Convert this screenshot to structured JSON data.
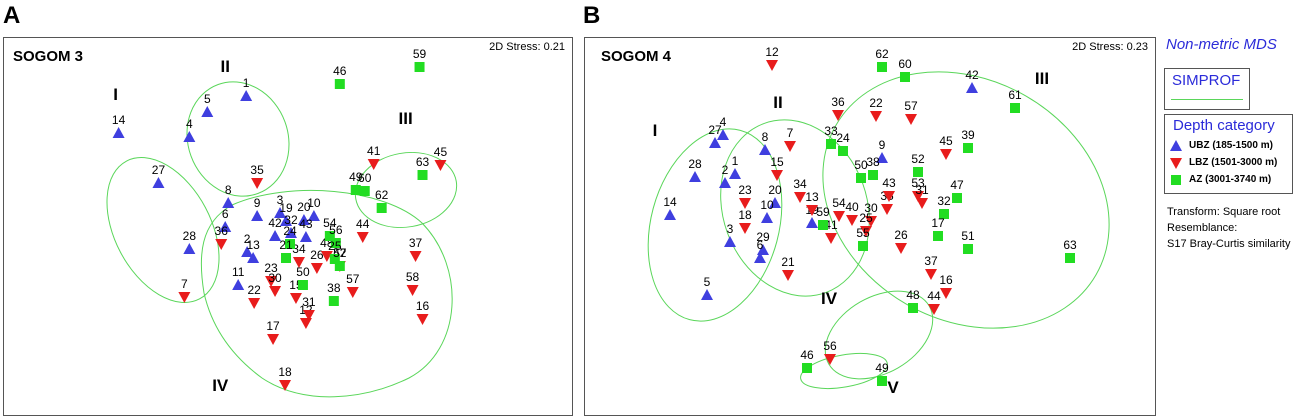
{
  "panels": [
    {
      "letter": "A",
      "title": "SOGOM 3",
      "stress": "2D Stress: 0.21"
    },
    {
      "letter": "B",
      "title": "SOGOM 4",
      "stress": "2D Stress: 0.23"
    }
  ],
  "side": {
    "mds_title": "Non-metric MDS",
    "simprof_label": "SIMPROF",
    "legend_title": "Depth category",
    "legend": [
      {
        "label": "UBZ (185-1500 m)",
        "symbol": "triangle-up",
        "color": "#3f3fdf"
      },
      {
        "label": "LBZ (1501-3000 m)",
        "symbol": "triangle-down",
        "color": "#e81c1c"
      },
      {
        "label": "AZ (3001-3740 m)",
        "symbol": "square",
        "color": "#22dd22"
      }
    ],
    "notes": [
      "Transform: Square root",
      "Resemblance:",
      "S17 Bray-Curtis similarity"
    ]
  },
  "colors": {
    "ubz": "#3f3fdf",
    "lbz": "#e81c1c",
    "az": "#22dd22",
    "simprof": "#5ad65a"
  },
  "chart_data": [
    {
      "type": "scatter",
      "title": "SOGOM 3",
      "subtitle": "2D Stress: 0.21",
      "xlabel": "",
      "ylabel": "",
      "xlim": [
        0,
        570
      ],
      "ylim": [
        0,
        377
      ],
      "axes_visible": false,
      "grid": false,
      "series": [
        {
          "name": "UBZ (185-1500 m)",
          "group": "ubz",
          "points": [
            {
              "label": "14",
              "x": 115,
              "y": 95
            },
            {
              "label": "5",
              "x": 204,
              "y": 74
            },
            {
              "label": "1",
              "x": 243,
              "y": 58
            },
            {
              "label": "4",
              "x": 186,
              "y": 99
            },
            {
              "label": "27",
              "x": 155,
              "y": 145
            },
            {
              "label": "8",
              "x": 225,
              "y": 165
            },
            {
              "label": "6",
              "x": 222,
              "y": 189
            },
            {
              "label": "9",
              "x": 254,
              "y": 178
            },
            {
              "label": "3",
              "x": 277,
              "y": 175
            },
            {
              "label": "19",
              "x": 283,
              "y": 183
            },
            {
              "label": "20",
              "x": 301,
              "y": 182
            },
            {
              "label": "10",
              "x": 311,
              "y": 178
            },
            {
              "label": "42",
              "x": 272,
              "y": 198
            },
            {
              "label": "32",
              "x": 288,
              "y": 195
            },
            {
              "label": "28",
              "x": 186,
              "y": 211
            },
            {
              "label": "2",
              "x": 244,
              "y": 214
            },
            {
              "label": "13",
              "x": 250,
              "y": 220
            },
            {
              "label": "11",
              "x": 235,
              "y": 247
            },
            {
              "label": "43",
              "x": 303,
              "y": 199
            }
          ]
        },
        {
          "name": "LBZ (1501-3000 m)",
          "group": "lbz",
          "points": [
            {
              "label": "35",
              "x": 254,
              "y": 145
            },
            {
              "label": "41",
              "x": 371,
              "y": 126
            },
            {
              "label": "45",
              "x": 438,
              "y": 127
            },
            {
              "label": "36",
              "x": 218,
              "y": 206
            },
            {
              "label": "44",
              "x": 360,
              "y": 199
            },
            {
              "label": "37",
              "x": 413,
              "y": 218
            },
            {
              "label": "7",
              "x": 181,
              "y": 259
            },
            {
              "label": "23",
              "x": 268,
              "y": 243
            },
            {
              "label": "30",
              "x": 272,
              "y": 253
            },
            {
              "label": "22",
              "x": 251,
              "y": 265
            },
            {
              "label": "34",
              "x": 296,
              "y": 224
            },
            {
              "label": "26",
              "x": 314,
              "y": 230
            },
            {
              "label": "48",
              "x": 324,
              "y": 218
            },
            {
              "label": "47",
              "x": 337,
              "y": 228
            },
            {
              "label": "58",
              "x": 410,
              "y": 252
            },
            {
              "label": "15",
              "x": 293,
              "y": 260
            },
            {
              "label": "16",
              "x": 420,
              "y": 281
            },
            {
              "label": "17",
              "x": 270,
              "y": 301
            },
            {
              "label": "12",
              "x": 303,
              "y": 285
            },
            {
              "label": "31",
              "x": 306,
              "y": 277
            },
            {
              "label": "18",
              "x": 282,
              "y": 347
            },
            {
              "label": "57",
              "x": 350,
              "y": 254
            }
          ]
        },
        {
          "name": "AZ (3001-3740 m)",
          "group": "az",
          "points": [
            {
              "label": "46",
              "x": 337,
              "y": 46
            },
            {
              "label": "59",
              "x": 417,
              "y": 29
            },
            {
              "label": "63",
              "x": 420,
              "y": 137
            },
            {
              "label": "49",
              "x": 353,
              "y": 152
            },
            {
              "label": "60",
              "x": 362,
              "y": 153
            },
            {
              "label": "62",
              "x": 379,
              "y": 170
            },
            {
              "label": "24",
              "x": 287,
              "y": 206
            },
            {
              "label": "54",
              "x": 327,
              "y": 198
            },
            {
              "label": "56",
              "x": 333,
              "y": 205
            },
            {
              "label": "21",
              "x": 283,
              "y": 220
            },
            {
              "label": "25",
              "x": 332,
              "y": 221
            },
            {
              "label": "52",
              "x": 337,
              "y": 228
            },
            {
              "label": "50",
              "x": 300,
              "y": 247
            },
            {
              "label": "38",
              "x": 331,
              "y": 263
            }
          ]
        }
      ],
      "clusters": [
        {
          "label": "I",
          "label_x": 112,
          "label_y": 62
        },
        {
          "label": "II",
          "label_x": 222,
          "label_y": 34
        },
        {
          "label": "III",
          "label_x": 403,
          "label_y": 86
        },
        {
          "label": "IV",
          "label_x": 217,
          "label_y": 353
        }
      ]
    },
    {
      "type": "scatter",
      "title": "SOGOM 4",
      "subtitle": "2D Stress: 0.23",
      "xlabel": "",
      "ylabel": "",
      "xlim": [
        0,
        570
      ],
      "ylim": [
        0,
        377
      ],
      "axes_visible": false,
      "grid": false,
      "series": [
        {
          "name": "UBZ (185-1500 m)",
          "group": "ubz",
          "points": [
            {
              "label": "27",
              "x": 130,
              "y": 105
            },
            {
              "label": "4",
              "x": 138,
              "y": 97
            },
            {
              "label": "8",
              "x": 180,
              "y": 112
            },
            {
              "label": "28",
              "x": 110,
              "y": 139
            },
            {
              "label": "1",
              "x": 150,
              "y": 136
            },
            {
              "label": "2",
              "x": 140,
              "y": 145
            },
            {
              "label": "14",
              "x": 85,
              "y": 177
            },
            {
              "label": "20",
              "x": 190,
              "y": 165
            },
            {
              "label": "10",
              "x": 182,
              "y": 180
            },
            {
              "label": "3",
              "x": 145,
              "y": 204
            },
            {
              "label": "29",
              "x": 178,
              "y": 212
            },
            {
              "label": "6",
              "x": 175,
              "y": 220
            },
            {
              "label": "5",
              "x": 122,
              "y": 257
            },
            {
              "label": "42",
              "x": 387,
              "y": 50
            },
            {
              "label": "9",
              "x": 297,
              "y": 120
            },
            {
              "label": "19",
              "x": 227,
              "y": 185
            }
          ]
        },
        {
          "name": "LBZ (1501-3000 m)",
          "group": "lbz",
          "points": [
            {
              "label": "12",
              "x": 187,
              "y": 27
            },
            {
              "label": "7",
              "x": 205,
              "y": 108
            },
            {
              "label": "15",
              "x": 192,
              "y": 137
            },
            {
              "label": "23",
              "x": 160,
              "y": 165
            },
            {
              "label": "18",
              "x": 160,
              "y": 190
            },
            {
              "label": "21",
              "x": 203,
              "y": 237
            },
            {
              "label": "36",
              "x": 253,
              "y": 77
            },
            {
              "label": "22",
              "x": 291,
              "y": 78
            },
            {
              "label": "57",
              "x": 326,
              "y": 81
            },
            {
              "label": "45",
              "x": 361,
              "y": 116
            },
            {
              "label": "34",
              "x": 215,
              "y": 159
            },
            {
              "label": "13",
              "x": 227,
              "y": 172
            },
            {
              "label": "54",
              "x": 254,
              "y": 178
            },
            {
              "label": "40",
              "x": 267,
              "y": 182
            },
            {
              "label": "30",
              "x": 286,
              "y": 183
            },
            {
              "label": "35",
              "x": 302,
              "y": 171
            },
            {
              "label": "43",
              "x": 304,
              "y": 158
            },
            {
              "label": "53",
              "x": 333,
              "y": 158
            },
            {
              "label": "31",
              "x": 337,
              "y": 165
            },
            {
              "label": "41",
              "x": 246,
              "y": 200
            },
            {
              "label": "25",
              "x": 281,
              "y": 193
            },
            {
              "label": "26",
              "x": 316,
              "y": 210
            },
            {
              "label": "37",
              "x": 346,
              "y": 236
            },
            {
              "label": "16",
              "x": 361,
              "y": 255
            },
            {
              "label": "44",
              "x": 349,
              "y": 271
            },
            {
              "label": "56",
              "x": 245,
              "y": 321
            }
          ]
        },
        {
          "name": "AZ (3001-3740 m)",
          "group": "az",
          "points": [
            {
              "label": "62",
              "x": 297,
              "y": 29
            },
            {
              "label": "60",
              "x": 320,
              "y": 39
            },
            {
              "label": "61",
              "x": 430,
              "y": 70
            },
            {
              "label": "33",
              "x": 246,
              "y": 106
            },
            {
              "label": "24",
              "x": 258,
              "y": 113
            },
            {
              "label": "39",
              "x": 383,
              "y": 110
            },
            {
              "label": "50",
              "x": 276,
              "y": 140
            },
            {
              "label": "38",
              "x": 288,
              "y": 137
            },
            {
              "label": "52",
              "x": 333,
              "y": 134
            },
            {
              "label": "47",
              "x": 372,
              "y": 160
            },
            {
              "label": "32",
              "x": 359,
              "y": 176
            },
            {
              "label": "59",
              "x": 238,
              "y": 187
            },
            {
              "label": "17",
              "x": 353,
              "y": 198
            },
            {
              "label": "51",
              "x": 383,
              "y": 211
            },
            {
              "label": "55",
              "x": 278,
              "y": 208
            },
            {
              "label": "63",
              "x": 485,
              "y": 220
            },
            {
              "label": "48",
              "x": 328,
              "y": 270
            },
            {
              "label": "46",
              "x": 222,
              "y": 330
            },
            {
              "label": "49",
              "x": 297,
              "y": 343
            }
          ]
        }
      ],
      "clusters": [
        {
          "label": "I",
          "label_x": 70,
          "label_y": 98
        },
        {
          "label": "II",
          "label_x": 193,
          "label_y": 70
        },
        {
          "label": "III",
          "label_x": 457,
          "label_y": 46
        },
        {
          "label": "IV",
          "label_x": 244,
          "label_y": 266
        },
        {
          "label": "V",
          "label_x": 308,
          "label_y": 355
        }
      ]
    }
  ]
}
